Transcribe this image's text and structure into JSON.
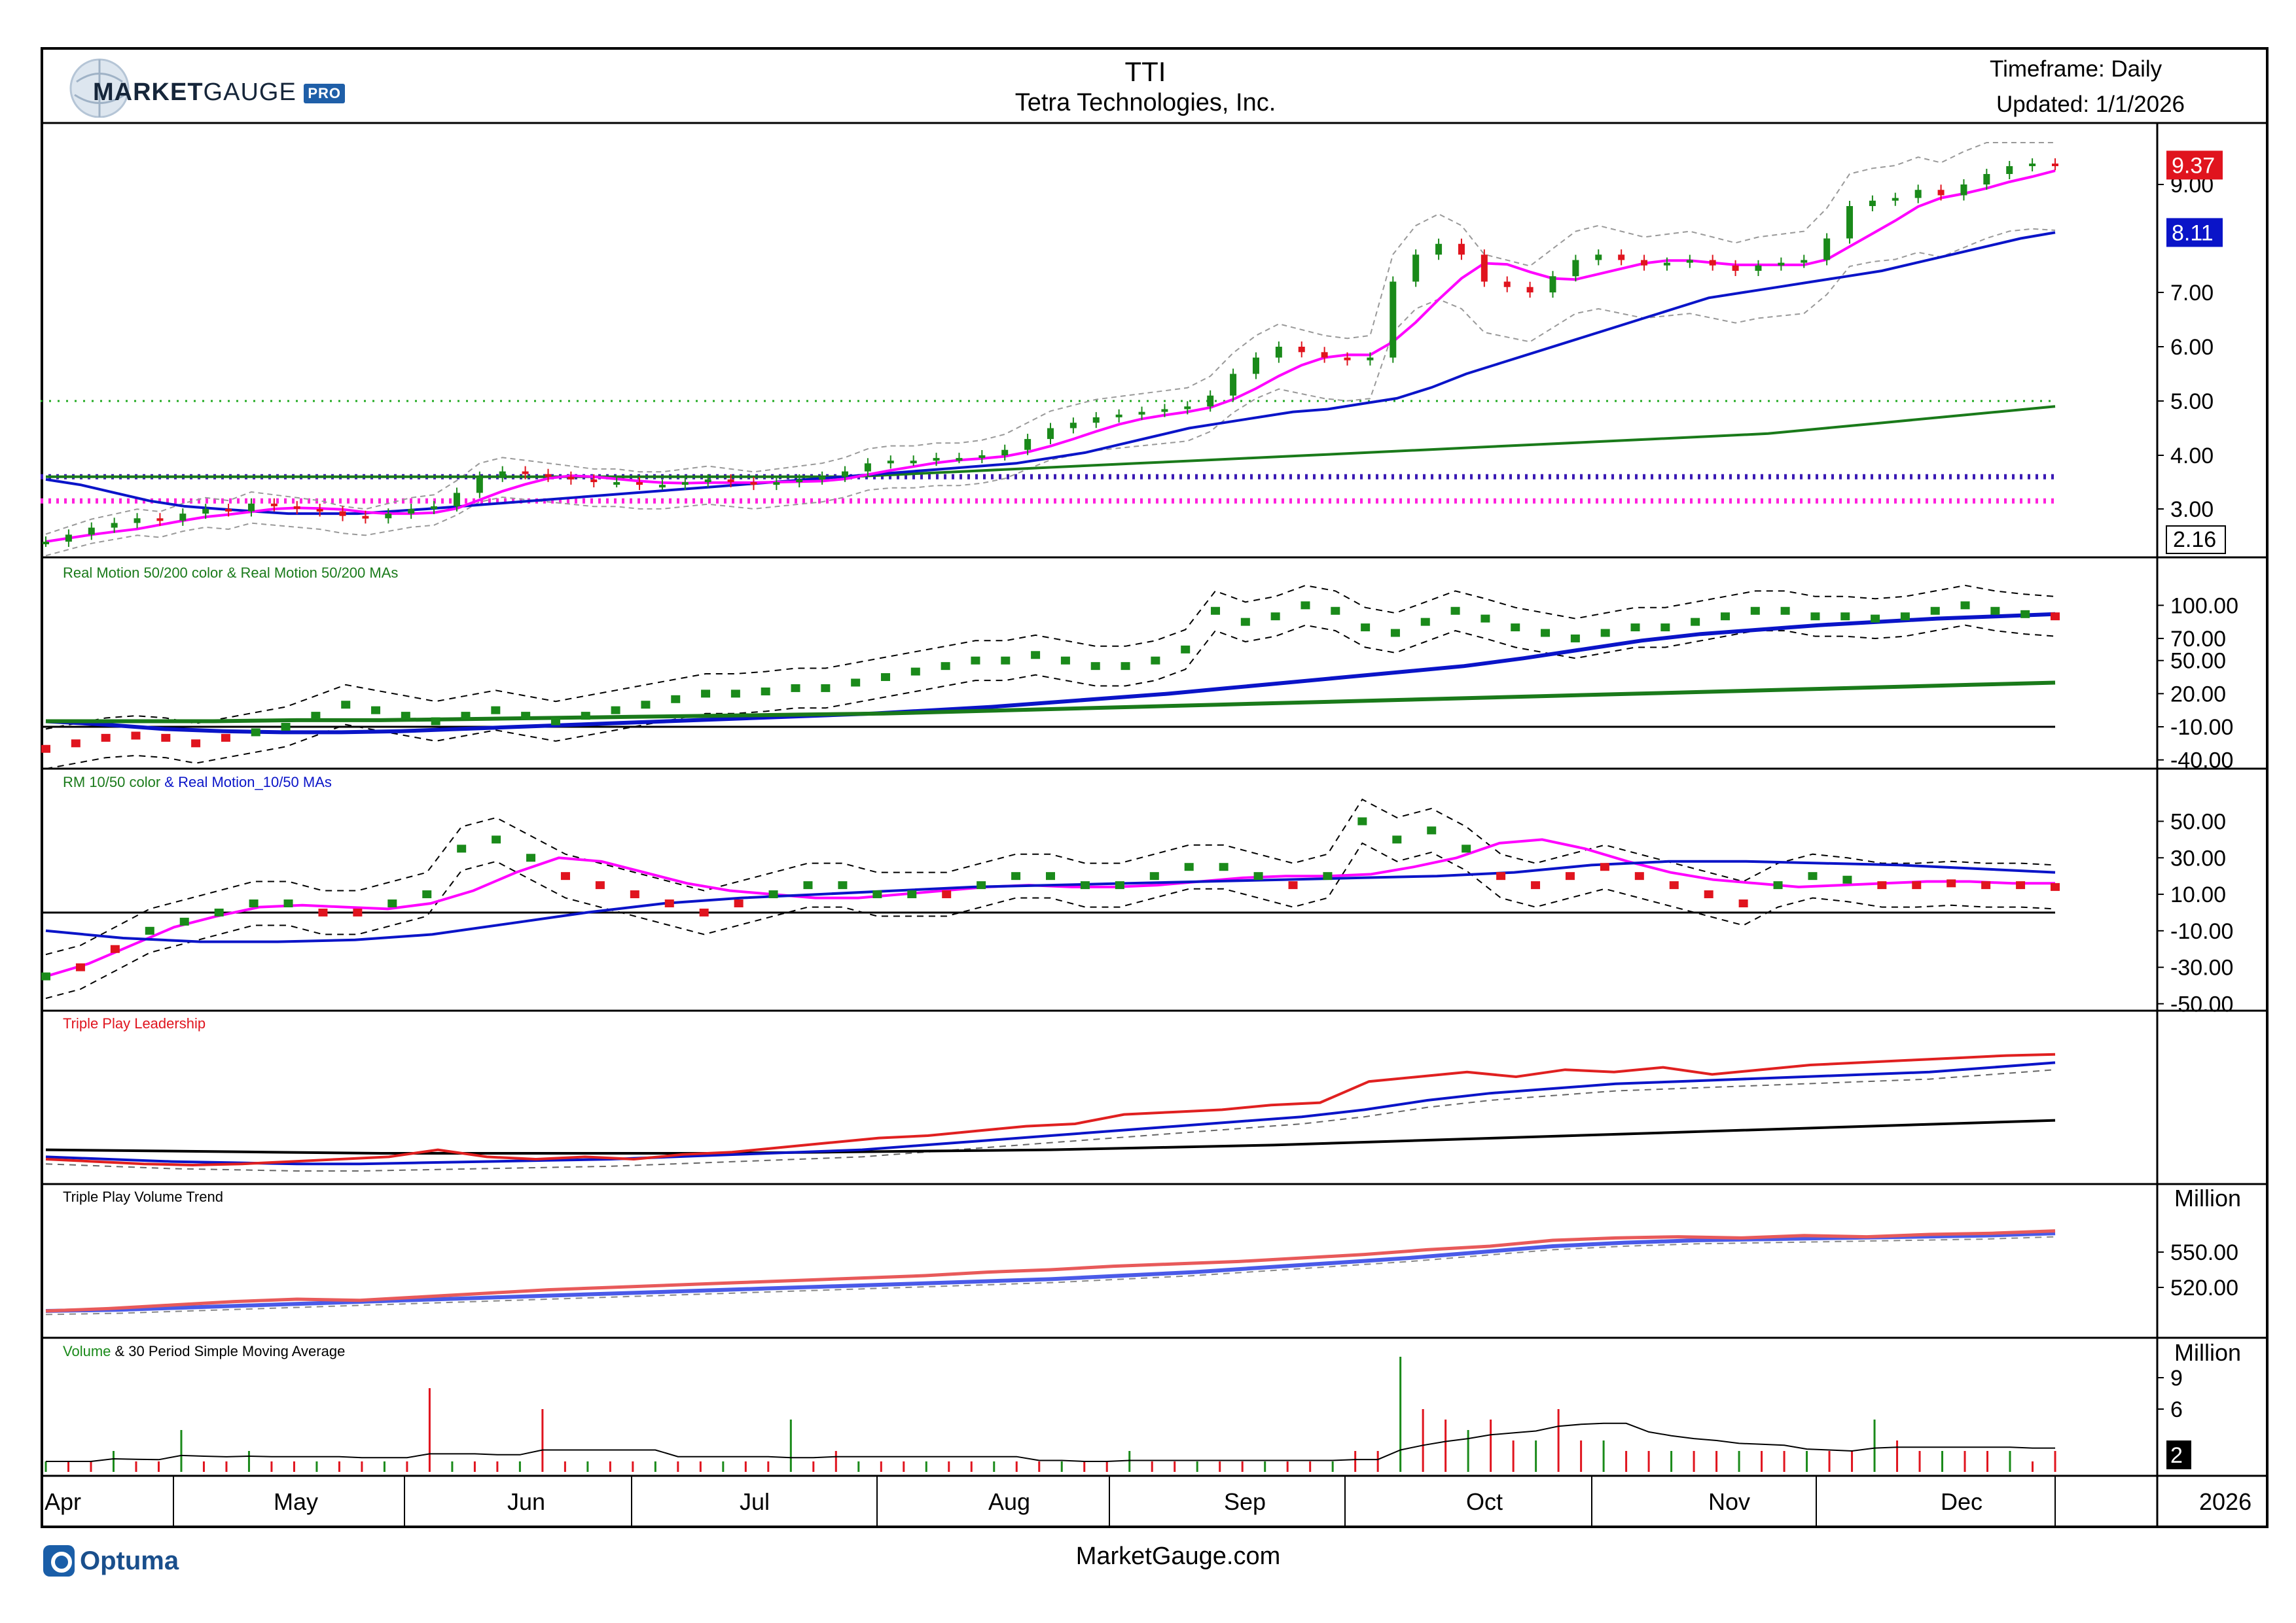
{
  "header": {
    "logo": {
      "market": "MARKET",
      "gauge": "GAUGE",
      "pro": "PRO"
    },
    "symbol": "TTI",
    "company": "Tetra Technologies, Inc.",
    "timeframe": "Timeframe: Daily",
    "updated": "Updated: 1/1/2026"
  },
  "footer": {
    "left_brand": "Optuma",
    "center": "MarketGauge.com"
  },
  "colors": {
    "up": "#1a8a1a",
    "down": "#e0141e",
    "magenta": "#ff00ff",
    "blue": "#0a14c8",
    "green": "#1a7a1a",
    "red_line": "#e02020",
    "purple_dotted": "#3a1ab4",
    "green_dotted": "#22aa22",
    "pink_dotted": "#ff22dd"
  },
  "chart_data": [
    {
      "panel": "price",
      "type": "candlestick",
      "title": "TTI",
      "x_axis": [
        "Apr",
        "May",
        "Jun",
        "Jul",
        "Aug",
        "Sep",
        "Oct",
        "Nov",
        "Dec",
        "2026"
      ],
      "y_ticks": [
        "9.00",
        "7.00",
        "6.00",
        "5.00",
        "4.00",
        "3.00"
      ],
      "ylim": [
        2.16,
        9.8
      ],
      "last_price": "9.37",
      "ma_badge": "8.11",
      "low_badge": "2.16",
      "close_series": [
        2.3,
        2.45,
        2.6,
        2.7,
        2.8,
        2.75,
        2.9,
        3.0,
        2.95,
        3.1,
        3.05,
        3.0,
        2.95,
        2.85,
        2.8,
        2.9,
        3.0,
        3.05,
        3.3,
        3.6,
        3.7,
        3.65,
        3.6,
        3.55,
        3.5,
        3.5,
        3.45,
        3.45,
        3.5,
        3.55,
        3.5,
        3.45,
        3.5,
        3.55,
        3.6,
        3.7,
        3.85,
        3.9,
        3.9,
        3.95,
        3.95,
        4.0,
        4.1,
        4.3,
        4.5,
        4.6,
        4.7,
        4.75,
        4.8,
        4.85,
        4.9,
        5.1,
        5.5,
        5.8,
        6.0,
        5.9,
        5.8,
        5.75,
        5.8,
        7.2,
        7.7,
        7.9,
        7.7,
        7.2,
        7.1,
        7.0,
        7.3,
        7.6,
        7.7,
        7.6,
        7.5,
        7.55,
        7.6,
        7.5,
        7.4,
        7.5,
        7.55,
        7.6,
        8.0,
        8.6,
        8.7,
        8.75,
        8.9,
        8.8,
        9.0,
        9.2,
        9.35,
        9.4,
        9.37
      ],
      "series": [
        {
          "name": "",
          "values": [
            3.55,
            3.45,
            3.3,
            3.15,
            3.05,
            3.0,
            2.95,
            2.9,
            2.9,
            2.9,
            2.95,
            3.0,
            3.05,
            3.1,
            3.15,
            3.2,
            3.25,
            3.3,
            3.35,
            3.4,
            3.45,
            3.5,
            3.55,
            3.6,
            3.65,
            3.7,
            3.75,
            3.8,
            3.85,
            3.95,
            4.05,
            4.2,
            4.35,
            4.5,
            4.6,
            4.7,
            4.8,
            4.85,
            4.95,
            5.05,
            5.25,
            5.5,
            5.7,
            5.9,
            6.1,
            6.3,
            6.5,
            6.7,
            6.9,
            7.0,
            7.1,
            7.2,
            7.3,
            7.4,
            7.55,
            7.7,
            7.85,
            8.0,
            8.11
          ]
        },
        {
          "name": "",
          "values": [
            3.6,
            3.6,
            3.6,
            3.6,
            3.6,
            3.6,
            3.6,
            3.6,
            3.6,
            3.6,
            3.6,
            3.6,
            3.6,
            3.6,
            3.6,
            3.65,
            3.7,
            3.75,
            3.8,
            3.85,
            3.9,
            3.95,
            4.0,
            4.05,
            4.1,
            4.15,
            4.2,
            4.25,
            4.3,
            4.35,
            4.4,
            4.5,
            4.6,
            4.7,
            4.8,
            4.9
          ]
        }
      ],
      "levels": [
        5.0,
        3.6,
        3.15
      ]
    },
    {
      "panel": "real_motion_50_200",
      "type": "scatter",
      "title": "Real Motion 50/200 color & Real Motion 50/200 MAs",
      "y_ticks": [
        "100.00",
        "70.00",
        "50.00",
        "20.00",
        "-10.00",
        "-40.00"
      ],
      "ylim": [
        -42,
        115
      ],
      "values": [
        -30,
        -25,
        -20,
        -18,
        -20,
        -25,
        -20,
        -15,
        -10,
        0,
        10,
        5,
        0,
        -5,
        0,
        5,
        0,
        -5,
        0,
        5,
        10,
        15,
        20,
        20,
        22,
        25,
        25,
        30,
        35,
        40,
        45,
        50,
        50,
        55,
        50,
        45,
        45,
        50,
        60,
        95,
        85,
        90,
        100,
        95,
        80,
        75,
        85,
        95,
        88,
        80,
        75,
        70,
        75,
        80,
        80,
        85,
        90,
        95,
        95,
        90,
        90,
        88,
        90,
        95,
        100,
        95,
        92,
        90
      ],
      "series": [
        {
          "name": "",
          "values": [
            -5,
            -8,
            -12,
            -14,
            -15,
            -15,
            -14,
            -12,
            -10,
            -8,
            -6,
            -4,
            -2,
            0,
            2,
            5,
            8,
            12,
            16,
            20,
            25,
            30,
            35,
            40,
            45,
            52,
            60,
            68,
            74,
            78,
            82,
            85,
            88,
            90,
            92
          ]
        },
        {
          "name": "",
          "values": [
            -5,
            -5,
            -5,
            -4,
            -4,
            -3,
            -2,
            -1,
            0,
            1,
            2,
            4,
            6,
            8,
            10,
            12,
            14,
            16,
            18,
            20,
            22,
            24,
            26,
            28,
            30
          ]
        }
      ]
    },
    {
      "panel": "rm_10_50",
      "type": "scatter",
      "title": "RM 10/50 color & Real Motion_10/50 MAs",
      "title_parts": [
        "RM 10/50 color",
        " & ",
        "Real Motion_10/50 MAs"
      ],
      "y_ticks": [
        "50.00",
        "30.00",
        "10.00",
        "-10.00",
        "-30.00",
        "-50.00"
      ],
      "ylim": [
        -52,
        62
      ],
      "values": [
        -35,
        -30,
        -20,
        -10,
        -5,
        0,
        5,
        5,
        0,
        0,
        5,
        10,
        35,
        40,
        30,
        20,
        15,
        10,
        5,
        0,
        5,
        10,
        15,
        15,
        10,
        10,
        10,
        15,
        20,
        20,
        15,
        15,
        20,
        25,
        25,
        20,
        15,
        20,
        50,
        40,
        45,
        35,
        20,
        15,
        20,
        25,
        20,
        15,
        10,
        5,
        15,
        20,
        18,
        15,
        15,
        16,
        15,
        15,
        14
      ],
      "series": [
        {
          "name": "",
          "values": [
            -35,
            -28,
            -18,
            -8,
            -2,
            3,
            4,
            3,
            2,
            5,
            12,
            22,
            30,
            28,
            22,
            16,
            12,
            10,
            8,
            8,
            10,
            12,
            14,
            15,
            14,
            14,
            15,
            17,
            19,
            20,
            20,
            21,
            25,
            30,
            38,
            40,
            35,
            28,
            22,
            18,
            16,
            14,
            15,
            16,
            17,
            17,
            16,
            16
          ]
        },
        {
          "name": "",
          "values": [
            -10,
            -14,
            -16,
            -16,
            -15,
            -12,
            -6,
            0,
            5,
            8,
            10,
            12,
            14,
            15,
            16,
            17,
            18,
            19,
            20,
            22,
            26,
            28,
            28,
            27,
            26,
            24,
            22
          ]
        }
      ]
    },
    {
      "panel": "triple_play_leadership",
      "type": "line",
      "title": "Triple Play Leadership",
      "series": [
        {
          "name": "",
          "values": [
            10,
            8,
            6,
            5,
            6,
            8,
            10,
            12,
            18,
            12,
            10,
            12,
            10,
            14,
            16,
            20,
            24,
            28,
            30,
            34,
            38,
            40,
            48,
            50,
            52,
            56,
            58,
            76,
            80,
            84,
            80,
            86,
            84,
            88,
            82,
            86,
            90,
            92,
            94,
            96,
            98,
            99
          ]
        },
        {
          "name": "",
          "values": [
            12,
            10,
            8,
            7,
            6,
            6,
            7,
            8,
            9,
            10,
            12,
            14,
            16,
            18,
            22,
            26,
            30,
            34,
            38,
            42,
            46,
            52,
            60,
            66,
            70,
            74,
            76,
            78,
            80,
            82,
            84,
            88,
            92
          ]
        },
        {
          "name": "",
          "values": [
            18,
            17,
            16,
            15,
            15,
            15,
            15,
            16,
            17,
            18,
            20,
            22,
            25,
            28,
            31,
            34,
            37,
            40,
            43
          ]
        }
      ]
    },
    {
      "panel": "triple_play_volume_trend",
      "type": "line",
      "title": "Triple Play Volume Trend",
      "unit": "Million",
      "y_ticks": [
        "550.00",
        "520.00"
      ],
      "series": [
        {
          "name": "",
          "values": [
            500,
            502,
            505,
            508,
            510,
            509,
            512,
            515,
            518,
            520,
            522,
            524,
            526,
            528,
            530,
            533,
            535,
            538,
            540,
            542,
            545,
            548,
            552,
            555,
            560,
            562,
            563,
            562,
            564,
            563,
            565,
            566,
            568
          ]
        },
        {
          "name": "",
          "values": [
            500,
            501,
            503,
            505,
            507,
            509,
            511,
            513,
            515,
            517,
            519,
            521,
            523,
            525,
            527,
            530,
            533,
            537,
            541,
            545,
            550,
            555,
            558,
            560,
            561,
            562,
            563,
            564,
            566
          ]
        }
      ]
    },
    {
      "panel": "volume",
      "type": "bar",
      "title": "Volume & 30 Period Simple Moving Average",
      "title_parts": [
        "Volume",
        " & 30 Period Simple Moving Average"
      ],
      "unit": "Million",
      "y_ticks": [
        "9",
        "6"
      ],
      "last_value": "2",
      "values": [
        1,
        1,
        1,
        2,
        1,
        1,
        4,
        1,
        1,
        2,
        1,
        1,
        1,
        1,
        1,
        1,
        1,
        8,
        1,
        1,
        1,
        1,
        6,
        1,
        1,
        1,
        1,
        1,
        1,
        1,
        1,
        1,
        1,
        5,
        1,
        2,
        1,
        1,
        1,
        1,
        1,
        1,
        1,
        1,
        1,
        1,
        1,
        1,
        2,
        1,
        1,
        1,
        1,
        1,
        1,
        1,
        1,
        1,
        2,
        2,
        11,
        6,
        5,
        4,
        5,
        3,
        3,
        6,
        3,
        3,
        2,
        2,
        2,
        2,
        2,
        2,
        2,
        2,
        2,
        2,
        2,
        5,
        3,
        2,
        2,
        2,
        2,
        2,
        1,
        2
      ]
    }
  ]
}
